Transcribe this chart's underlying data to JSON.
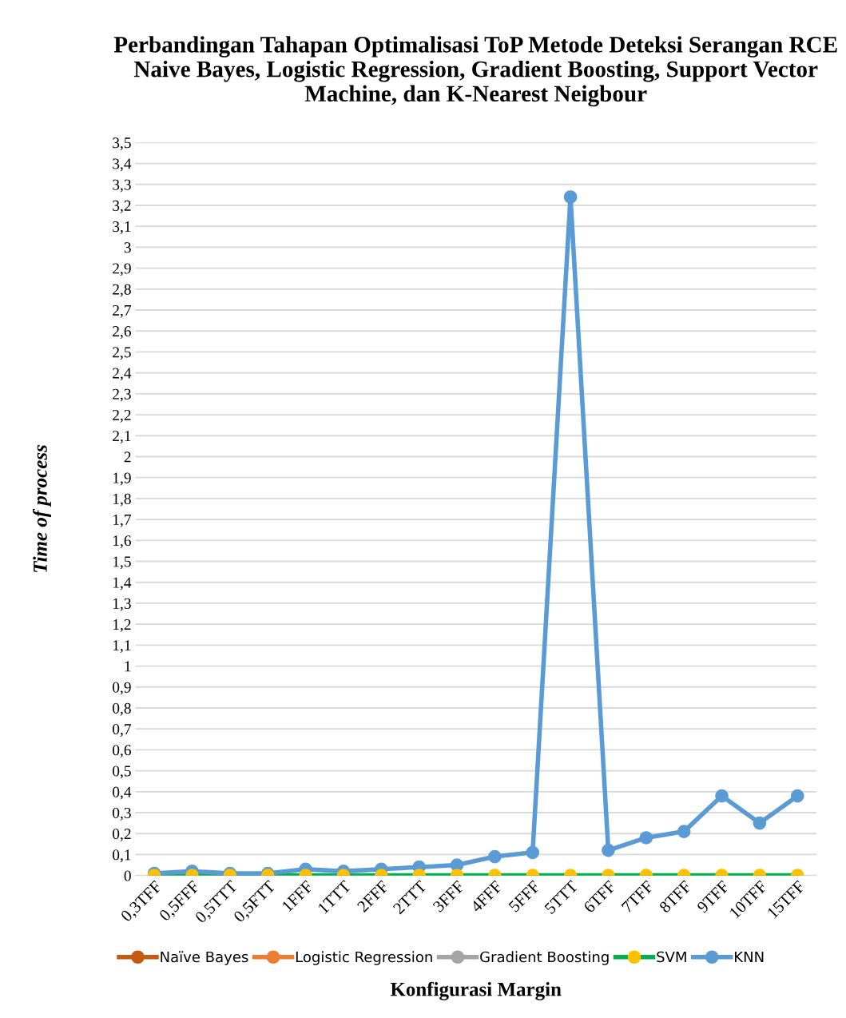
{
  "chart_data": {
    "type": "line",
    "title": "Perbandingan Tahapan Optimalisasi ToP Metode Deteksi Serangan RCE Naive Bayes, Logistic Regression, Gradient Boosting, Support Vector Machine, dan K-Nearest Neigbour",
    "xlabel": "Konfigurasi Margin",
    "ylabel": "Time of process",
    "categories": [
      "0,3TFF",
      "0,5FFF",
      "0,5TTT",
      "0,5FTT",
      "1FFF",
      "1TTT",
      "2FFF",
      "2TTT",
      "3FFF",
      "4FFF",
      "5FFF",
      "5TTT",
      "6TFF",
      "7TFF",
      "8TFF",
      "9TFF",
      "10TFF",
      "15TFF"
    ],
    "series": [
      {
        "name": "Naïve Bayes",
        "color": "#c55a11",
        "values": [
          null,
          null,
          null,
          null,
          null,
          null,
          null,
          null,
          null,
          null,
          null,
          null,
          null,
          null,
          null,
          null,
          null,
          null
        ]
      },
      {
        "name": "Logistic Regression",
        "color": "#ed7d31",
        "values": [
          null,
          null,
          null,
          null,
          null,
          null,
          null,
          null,
          null,
          null,
          null,
          null,
          null,
          null,
          null,
          null,
          null,
          null
        ]
      },
      {
        "name": "Gradient Boosting",
        "color": "#a5a5a5",
        "values": [
          null,
          null,
          null,
          null,
          null,
          null,
          null,
          null,
          null,
          null,
          null,
          null,
          null,
          null,
          null,
          null,
          null,
          null
        ]
      },
      {
        "name": "SVM",
        "color": "#00b050",
        "colors": [
          "#ffc000",
          "#ffc000",
          "#ffc000",
          "#ffc000",
          "#ffc000",
          "#ffc000",
          "#ffc000",
          "#ffc000",
          "#ffc000",
          "#ffc000",
          "#ffc000",
          "#ffc000",
          "#ffc000",
          "#ffc000",
          "#ffc000",
          "#ffc000",
          "#ffc000",
          "#ffc000"
        ],
        "values": [
          0,
          0,
          0,
          0,
          0,
          0,
          0,
          0,
          0,
          0,
          0,
          0,
          0,
          0,
          0,
          0,
          0,
          0
        ]
      },
      {
        "name": "KNN",
        "color": "#5b9bd5",
        "values": [
          0.01,
          0.02,
          0.01,
          0.01,
          0.03,
          0.02,
          0.03,
          0.04,
          0.05,
          0.09,
          0.11,
          3.24,
          0.12,
          0.18,
          0.21,
          0.38,
          0.25,
          0.38
        ]
      }
    ],
    "ylim": [
      0,
      3.5
    ],
    "yticks": [
      0,
      {
        "value": 0.1,
        "label": "0,1"
      },
      {
        "value": 0.2,
        "label": "0,2"
      },
      {
        "value": 0.3,
        "label": "0,3"
      },
      {
        "value": 0.4,
        "label": "0,4"
      },
      {
        "value": 0.5,
        "label": "0,5"
      },
      {
        "value": 0.6,
        "label": "0,6"
      },
      {
        "value": 0.7,
        "label": "0,7"
      },
      {
        "value": 0.8,
        "label": "0,8"
      },
      {
        "value": 0.9,
        "label": "0,9"
      },
      1,
      {
        "value": 1.1,
        "label": "1,1"
      },
      {
        "value": 1.2,
        "label": "1,2"
      },
      {
        "value": 1.3,
        "label": "1,3"
      },
      {
        "value": 1.4,
        "label": "1,4"
      },
      {
        "value": 1.5,
        "label": "1,5"
      },
      {
        "value": 1.6,
        "label": "1,6"
      },
      {
        "value": 1.7,
        "label": "1,7"
      },
      {
        "value": 1.8,
        "label": "1,8"
      },
      {
        "value": 1.9,
        "label": "1,9"
      },
      2,
      {
        "value": 2.1,
        "label": "2,1"
      },
      {
        "value": 2.2,
        "label": "2,2"
      },
      {
        "value": 2.3,
        "label": "2,3"
      },
      {
        "value": 2.4,
        "label": "2,4"
      },
      {
        "value": 2.5,
        "label": "2,5"
      },
      {
        "value": 2.6,
        "label": "2,6"
      },
      {
        "value": 2.7,
        "label": "2,7"
      },
      {
        "value": 2.8,
        "label": "2,8"
      },
      {
        "value": 2.9,
        "label": "2,9"
      },
      3,
      {
        "value": 3.1,
        "label": "3,1"
      },
      {
        "value": 3.2,
        "label": "3,2"
      },
      {
        "value": 3.3,
        "label": "3,3"
      },
      {
        "value": 3.4,
        "label": "3,4"
      },
      {
        "value": 3.5,
        "label": "3,5"
      }
    ],
    "grid": "y",
    "legend": "bottom",
    "marker": "circle",
    "line_style": "solid"
  }
}
